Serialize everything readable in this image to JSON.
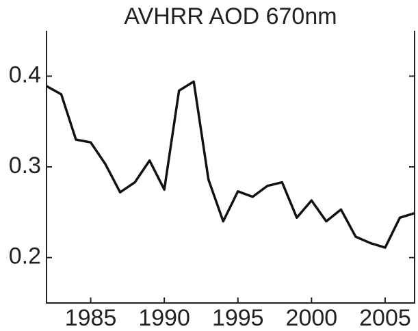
{
  "chart_data": {
    "type": "line",
    "title": "AVHRR AOD 670nm",
    "x": [
      1982,
      1983,
      1984,
      1985,
      1986,
      1987,
      1988,
      1989,
      1990,
      1991,
      1992,
      1993,
      1994,
      1995,
      1996,
      1997,
      1998,
      1999,
      2000,
      2001,
      2002,
      2003,
      2004,
      2005,
      2006,
      2007
    ],
    "series": [
      {
        "color": "#111111",
        "values": [
          0.389,
          0.38,
          0.33,
          0.327,
          0.303,
          0.272,
          0.283,
          0.307,
          0.275,
          0.384,
          0.394,
          0.286,
          0.24,
          0.273,
          0.267,
          0.279,
          0.283,
          0.244,
          0.263,
          0.24,
          0.253,
          0.223,
          0.216,
          0.211,
          0.244,
          0.249
        ]
      }
    ],
    "xlim": [
      1982,
      2007
    ],
    "xticks": [
      1985,
      1990,
      1995,
      2000,
      2005
    ],
    "ylim": [
      0.15,
      0.45
    ],
    "yticks": [
      0.2,
      0.3,
      0.4
    ]
  }
}
